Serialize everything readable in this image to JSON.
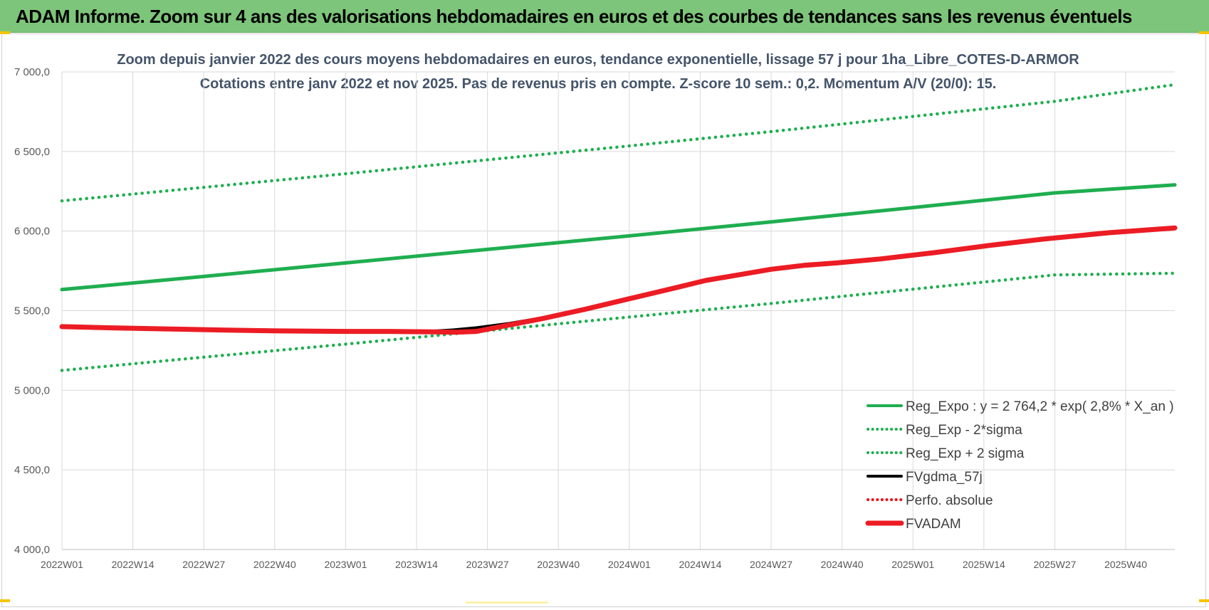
{
  "header": {
    "title": "ADAM Informe. Zoom sur 4 ans des valorisations hebdomadaires en euros et des courbes de tendances sans les revenus éventuels"
  },
  "chart_data": {
    "type": "line",
    "title": "Zoom depuis janvier 2022 des cours moyens hebdomadaires en euros, tendance exponentielle, lissage 57 j pour 1ha_Libre_COTES-D-ARMOR",
    "subtitle": "Cotations entre janv 2022 et nov 2025. Pas de revenus pris en compte. Z-score 10 sem.: 0,2. Momentum A/V (20/0): 15.",
    "xlabel": "",
    "ylabel": "",
    "ylim": [
      4000,
      7000
    ],
    "yticks": [
      "4 000,0",
      "4 500,0",
      "5 000,0",
      "5 500,0",
      "6 000,0",
      "6 500,0",
      "7 000,0"
    ],
    "ytick_values": [
      4000,
      4500,
      5000,
      5500,
      6000,
      6500,
      7000
    ],
    "x_ticks": [
      "2022W01",
      "2022W14",
      "2022W27",
      "2022W40",
      "2023W01",
      "2023W14",
      "2023W27",
      "2023W40",
      "2024W01",
      "2024W14",
      "2024W27",
      "2024W40",
      "2025W01",
      "2025W14",
      "2025W27",
      "2025W40"
    ],
    "x_range_weeks": [
      0,
      204
    ],
    "grid": true,
    "legend_position": "bottom-right",
    "series": [
      {
        "name": "Reg_Expo : y = 2 764,2 * exp( 2,8% *  X_an )",
        "color": "#1fae50",
        "style": "solid",
        "x": [
          0,
          26,
          52,
          78,
          104,
          130,
          156,
          182,
          204
        ],
        "y": [
          5633,
          5715,
          5800,
          5885,
          5970,
          6058,
          6148,
          6240,
          6290
        ]
      },
      {
        "name": "Reg_Exp - 2*sigma",
        "color": "#1fae50",
        "style": "dotted",
        "x": [
          0,
          26,
          52,
          78,
          104,
          130,
          156,
          182,
          204
        ],
        "y": [
          5125,
          5208,
          5290,
          5375,
          5460,
          5545,
          5635,
          5725,
          5735
        ]
      },
      {
        "name": "Reg_Exp + 2 sigma",
        "color": "#1fae50",
        "style": "dotted",
        "x": [
          0,
          26,
          52,
          78,
          104,
          130,
          156,
          182,
          204
        ],
        "y": [
          6190,
          6275,
          6360,
          6448,
          6535,
          6625,
          6720,
          6815,
          6920
        ]
      },
      {
        "name": "FVgdma_57j",
        "color": "#000000",
        "style": "solid",
        "x": [
          0,
          10,
          20,
          30,
          40,
          52,
          60,
          68,
          72,
          76,
          82,
          88,
          96,
          104,
          112,
          118,
          124,
          130,
          136,
          142,
          150,
          160,
          170,
          180,
          192,
          204
        ],
        "y": [
          5400,
          5392,
          5385,
          5378,
          5373,
          5370,
          5370,
          5372,
          5380,
          5393,
          5420,
          5455,
          5510,
          5575,
          5640,
          5690,
          5725,
          5760,
          5780,
          5800,
          5825,
          5865,
          5910,
          5950,
          5990,
          6020
        ]
      },
      {
        "name": "Perfo. absolue",
        "color": "#e8141b",
        "style": "dotted",
        "x": [],
        "y": []
      },
      {
        "name": "FVADAM",
        "color": "#ec1c24",
        "style": "solid",
        "x": [
          0,
          10,
          20,
          30,
          40,
          52,
          60,
          68,
          72,
          76,
          82,
          88,
          96,
          104,
          112,
          118,
          124,
          130,
          136,
          142,
          150,
          160,
          170,
          180,
          192,
          204
        ],
        "y": [
          5400,
          5392,
          5385,
          5378,
          5373,
          5370,
          5370,
          5367,
          5365,
          5370,
          5410,
          5450,
          5510,
          5575,
          5640,
          5690,
          5725,
          5760,
          5785,
          5800,
          5825,
          5865,
          5910,
          5950,
          5990,
          6020
        ]
      }
    ]
  }
}
